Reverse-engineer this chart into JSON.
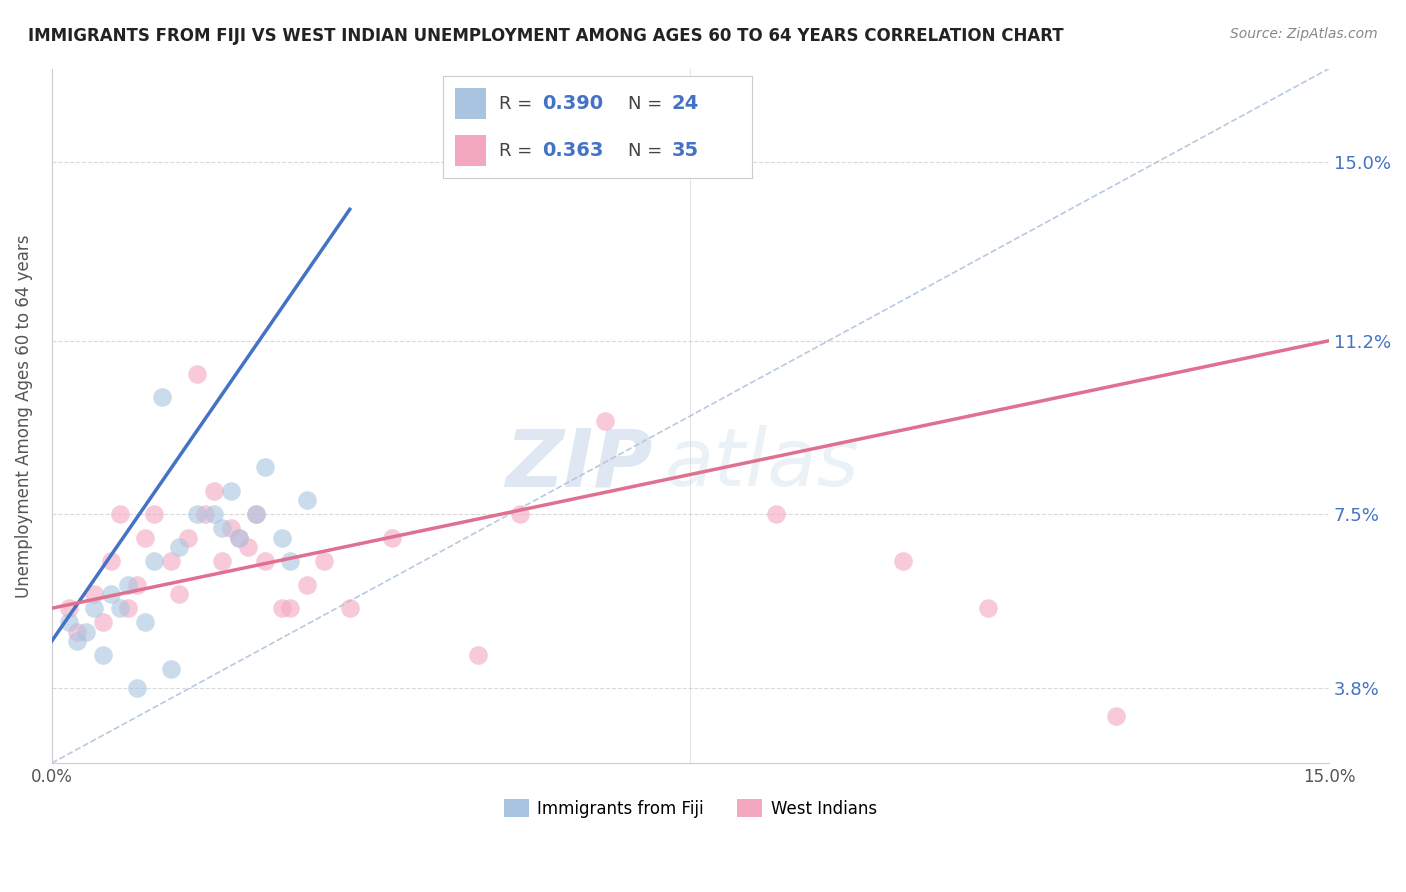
{
  "title": "IMMIGRANTS FROM FIJI VS WEST INDIAN UNEMPLOYMENT AMONG AGES 60 TO 64 YEARS CORRELATION CHART",
  "source": "Source: ZipAtlas.com",
  "ylabel": "Unemployment Among Ages 60 to 64 years",
  "ytick_labels": [
    "3.8%",
    "7.5%",
    "11.2%",
    "15.0%"
  ],
  "ytick_values": [
    3.8,
    7.5,
    11.2,
    15.0
  ],
  "xlim": [
    0.0,
    15.0
  ],
  "ylim": [
    2.2,
    17.0
  ],
  "fiji_color": "#a8c4e0",
  "westindian_color": "#f4a8c0",
  "fiji_line_color": "#4472c4",
  "westindian_line_color": "#e07090",
  "diagonal_color": "#b0c4de",
  "fiji_R": 0.39,
  "fiji_N": 24,
  "westindian_R": 0.363,
  "westindian_N": 35,
  "fiji_scatter_x": [
    0.2,
    0.3,
    0.4,
    0.5,
    0.6,
    0.7,
    0.8,
    0.9,
    1.0,
    1.1,
    1.2,
    1.5,
    1.7,
    1.9,
    2.0,
    2.1,
    2.2,
    2.4,
    2.5,
    2.7,
    2.8,
    3.0,
    1.3,
    1.4
  ],
  "fiji_scatter_y": [
    5.2,
    4.8,
    5.0,
    5.5,
    4.5,
    5.8,
    5.5,
    6.0,
    3.8,
    5.2,
    6.5,
    6.8,
    7.5,
    7.5,
    7.2,
    8.0,
    7.0,
    7.5,
    8.5,
    7.0,
    6.5,
    7.8,
    10.0,
    4.2
  ],
  "westindian_scatter_x": [
    0.2,
    0.3,
    0.5,
    0.6,
    0.7,
    0.8,
    0.9,
    1.0,
    1.1,
    1.2,
    1.4,
    1.5,
    1.6,
    1.7,
    1.8,
    1.9,
    2.0,
    2.1,
    2.2,
    2.3,
    2.4,
    2.5,
    2.7,
    2.8,
    3.0,
    3.2,
    3.5,
    4.0,
    5.0,
    5.5,
    6.5,
    8.5,
    10.0,
    11.0,
    12.5
  ],
  "westindian_scatter_y": [
    5.5,
    5.0,
    5.8,
    5.2,
    6.5,
    7.5,
    5.5,
    6.0,
    7.0,
    7.5,
    6.5,
    5.8,
    7.0,
    10.5,
    7.5,
    8.0,
    6.5,
    7.2,
    7.0,
    6.8,
    7.5,
    6.5,
    5.5,
    5.5,
    6.0,
    6.5,
    5.5,
    7.0,
    4.5,
    7.5,
    9.5,
    7.5,
    6.5,
    5.5,
    3.2
  ],
  "fiji_line_x0": 0.0,
  "fiji_line_y0": 4.8,
  "fiji_line_x1": 3.5,
  "fiji_line_y1": 14.0,
  "wi_line_x0": 0.0,
  "wi_line_y0": 5.5,
  "wi_line_x1": 15.0,
  "wi_line_y1": 11.2,
  "diag_x0": 0.0,
  "diag_y0": 2.2,
  "diag_x1": 15.0,
  "diag_y1": 17.0,
  "watermark_zip": "ZIP",
  "watermark_atlas": "atlas",
  "legend_fiji_label": "Immigrants from Fiji",
  "legend_wi_label": "West Indians",
  "grid_color": "#d0d0d0",
  "background_color": "#ffffff"
}
